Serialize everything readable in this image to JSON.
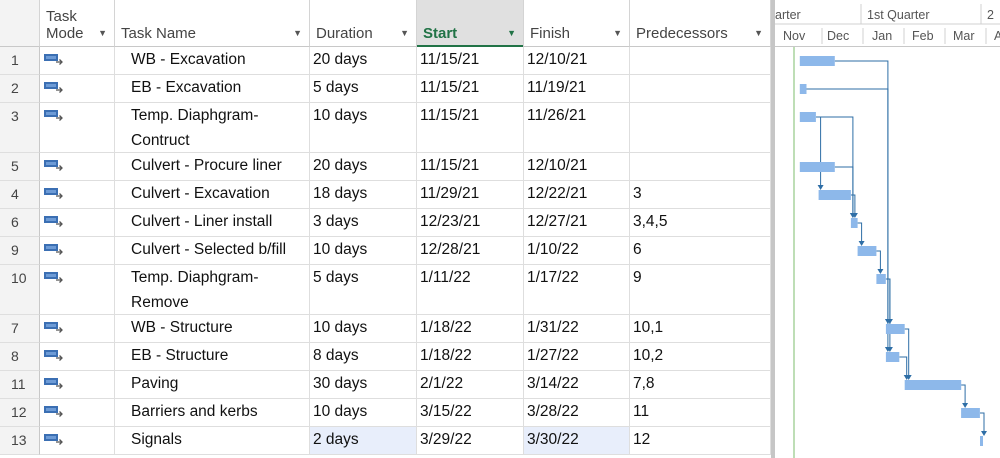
{
  "columns": {
    "task_mode_line1": "Task",
    "task_mode_line2": "Mode",
    "task_name": "Task Name",
    "duration": "Duration",
    "start": "Start",
    "finish": "Finish",
    "predecessors": "Predecessors"
  },
  "rows": [
    {
      "id": "1",
      "name_lines": [
        "WB - Excavation"
      ],
      "duration": "20 days",
      "start": "11/15/21",
      "finish": "12/10/21",
      "predecessors": ""
    },
    {
      "id": "2",
      "name_lines": [
        "EB - Excavation"
      ],
      "duration": "5 days",
      "start": "11/15/21",
      "finish": "11/19/21",
      "predecessors": ""
    },
    {
      "id": "3",
      "name_lines": [
        "Temp. Diaphgram-",
        "Contruct"
      ],
      "duration": "10 days",
      "start": "11/15/21",
      "finish": "11/26/21",
      "predecessors": ""
    },
    {
      "id": "5",
      "name_lines": [
        "Culvert - Procure liner"
      ],
      "duration": "20 days",
      "start": "11/15/21",
      "finish": "12/10/21",
      "predecessors": ""
    },
    {
      "id": "4",
      "name_lines": [
        "Culvert - Excavation"
      ],
      "duration": "18 days",
      "start": "11/29/21",
      "finish": "12/22/21",
      "predecessors": "3"
    },
    {
      "id": "6",
      "name_lines": [
        "Culvert - Liner install"
      ],
      "duration": "3 days",
      "start": "12/23/21",
      "finish": "12/27/21",
      "predecessors": "3,4,5"
    },
    {
      "id": "9",
      "name_lines": [
        "Culvert - Selected b/fill"
      ],
      "duration": "10 days",
      "start": "12/28/21",
      "finish": "1/10/22",
      "predecessors": "6"
    },
    {
      "id": "10",
      "name_lines": [
        "Temp. Diaphgram-",
        "Remove"
      ],
      "duration": "5 days",
      "start": "1/11/22",
      "finish": "1/17/22",
      "predecessors": "9"
    },
    {
      "id": "7",
      "name_lines": [
        "WB - Structure"
      ],
      "duration": "10 days",
      "start": "1/18/22",
      "finish": "1/31/22",
      "predecessors": "10,1"
    },
    {
      "id": "8",
      "name_lines": [
        "EB - Structure"
      ],
      "duration": "8 days",
      "start": "1/18/22",
      "finish": "1/27/22",
      "predecessors": "10,2"
    },
    {
      "id": "11",
      "name_lines": [
        "Paving"
      ],
      "duration": "30 days",
      "start": "2/1/22",
      "finish": "3/14/22",
      "predecessors": "7,8"
    },
    {
      "id": "12",
      "name_lines": [
        "Barriers and kerbs"
      ],
      "duration": "10 days",
      "start": "3/15/22",
      "finish": "3/28/22",
      "predecessors": "11"
    },
    {
      "id": "13",
      "name_lines": [
        "Signals"
      ],
      "duration": "2 days",
      "start": "3/29/22",
      "finish": "3/30/22",
      "predecessors": "12"
    }
  ],
  "timescale": {
    "top_tiers": [
      "arter",
      "1st Quarter",
      "2"
    ],
    "months": [
      "Nov",
      "Dec",
      "Jan",
      "Feb",
      "Mar",
      "A"
    ]
  },
  "colors": {
    "accent_green": "#217346",
    "bar_fill": "#8db8ea",
    "link_line": "#2e6ea6",
    "today_line": "#7cbc6c",
    "selected_cell": "#e8eefb"
  },
  "icons": {
    "task_mode": "auto-scheduled-task-icon"
  }
}
